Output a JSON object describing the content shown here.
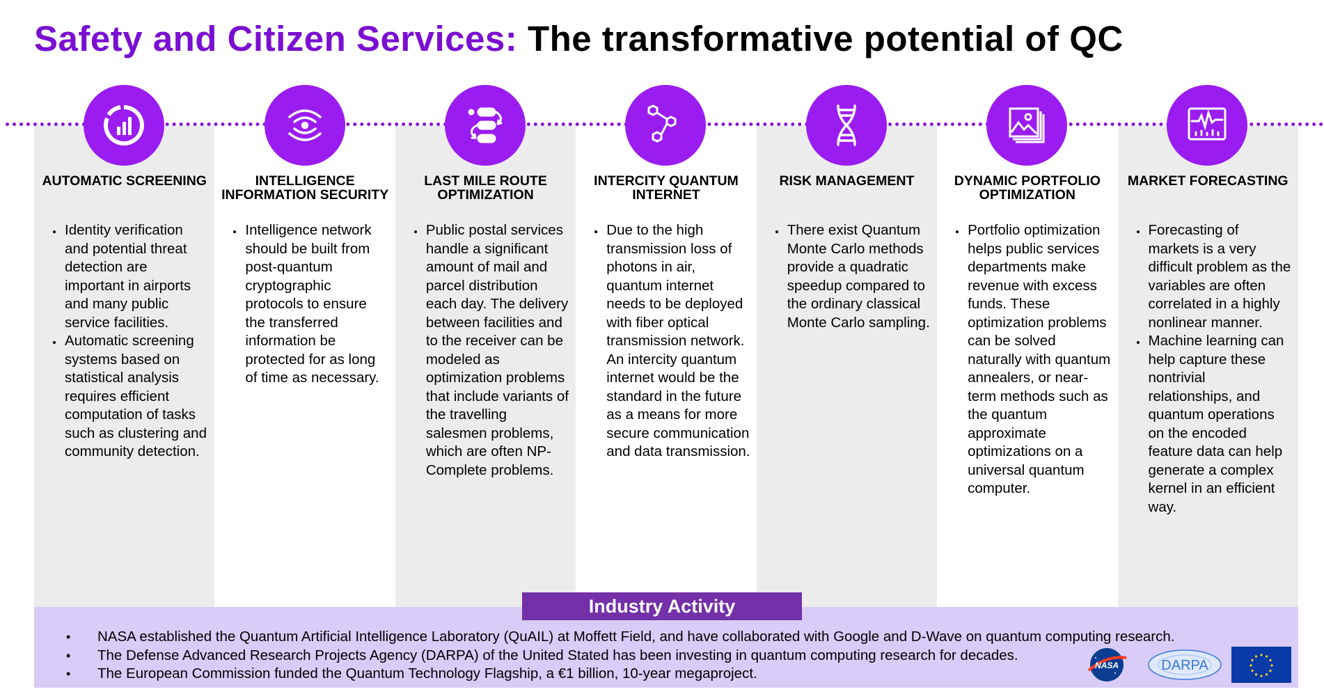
{
  "title": {
    "part1": "Safety and Citizen Services:",
    "part2": "The transformative potential of QC"
  },
  "columns": [
    {
      "icon": "pie-chart-icon",
      "title": "AUTOMATIC SCREENING",
      "bullets": [
        "Identity verification and potential threat detection are important in airports and many public service facilities.",
        "Automatic screening systems based on statistical analysis requires efficient computation of tasks such as clustering and community detection."
      ]
    },
    {
      "icon": "signal-waves-icon",
      "title": "INTELLIGENCE INFORMATION SECURITY",
      "bullets": [
        "Intelligence network should be built from post-quantum cryptographic protocols to ensure the transferred information be protected for as long of time as necessary."
      ]
    },
    {
      "icon": "route-arrows-icon",
      "title": "LAST MILE ROUTE OPTIMIZATION",
      "bullets": [
        "Public postal services handle a significant amount of mail and parcel distribution each day. The delivery between facilities and to the receiver can be modeled as optimization problems that include variants of the travelling salesmen problems, which are often NP-Complete problems."
      ]
    },
    {
      "icon": "molecule-icon",
      "title": "INTERCITY QUANTUM INTERNET",
      "bullets": [
        "Due to the high transmission loss of photons in air, quantum internet needs to be deployed with fiber optical transmission network. An intercity quantum internet would be the standard in the future as a means for more secure communication and data transmission."
      ]
    },
    {
      "icon": "dna-icon",
      "title": "RISK MANAGEMENT",
      "bullets": [
        "There exist Quantum Monte Carlo methods provide a quadratic speedup compared to the ordinary classical Monte Carlo sampling."
      ]
    },
    {
      "icon": "image-stack-icon",
      "title": "DYNAMIC PORTFOLIO OPTIMIZATION",
      "bullets": [
        "Portfolio optimization helps public services departments make revenue with excess funds. These optimization problems can be solved naturally with quantum annealers, or near-term methods such as the quantum approximate optimizations on a universal quantum computer."
      ]
    },
    {
      "icon": "monitor-chart-icon",
      "title": "MARKET FORECASTING",
      "bullets": [
        "Forecasting of markets is a very difficult problem as the variables are often correlated in a highly nonlinear manner.",
        "Machine learning can help capture these nontrivial relationships, and quantum operations on the encoded feature data can help generate a complex kernel in an efficient way."
      ]
    }
  ],
  "industry": {
    "heading": "Industry Activity",
    "items": [
      "NASA established the Quantum Artificial Intelligence Laboratory (QuAIL) at Moffett Field, and have collaborated with Google and D-Wave on quantum computing research.",
      "The Defense Advanced Research Projects Agency (DARPA) of the United Stated has been investing in quantum computing research for decades.",
      "The European Commission funded the Quantum Technology Flagship, a €1 billion, 10-year megaproject."
    ],
    "logos": {
      "nasa": "NASA",
      "darpa": "DARPA"
    }
  },
  "colors": {
    "accent_purple": "#9b1cf0",
    "title_purple": "#7a0fd1",
    "industry_header": "#7330a8",
    "industry_bg": "#d9ccf8",
    "column_shade": "#ececec"
  }
}
